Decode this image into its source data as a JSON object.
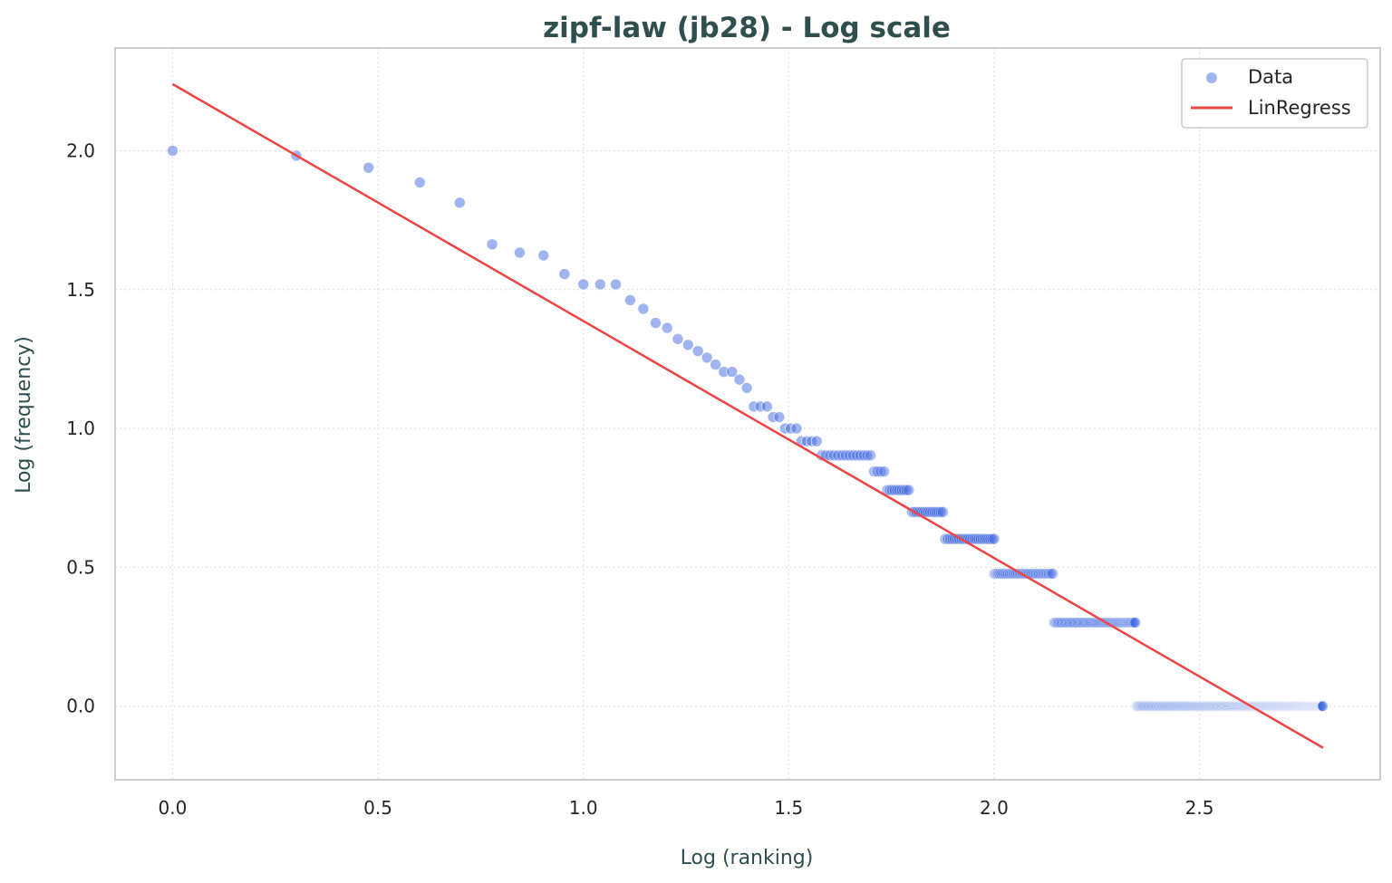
{
  "chart_data": {
    "type": "scatter",
    "title": "zipf-law (jb28) - Log scale",
    "xlabel": "Log (ranking)",
    "ylabel": "Log (frequency)",
    "xlim": [
      -0.14,
      2.94
    ],
    "ylim": [
      -0.265,
      2.37
    ],
    "xticks": [
      0.0,
      0.5,
      1.0,
      1.5,
      2.0,
      2.5
    ],
    "yticks": [
      0.0,
      0.5,
      1.0,
      1.5,
      2.0
    ],
    "xtick_labels": [
      "0.0",
      "0.5",
      "1.0",
      "1.5",
      "2.0",
      "2.5"
    ],
    "ytick_labels": [
      "0.0",
      "0.5",
      "1.0",
      "1.5",
      "2.0"
    ],
    "grid": true,
    "legend_position": "top-right",
    "colors": {
      "data": "#4169e1",
      "regression": "#ef4444",
      "title": "#2f4f4f",
      "axes_edge": "#cccccc",
      "grid": "#dddddd"
    },
    "series": [
      {
        "name": "Data",
        "kind": "scatter",
        "points": [
          [
            0.0,
            2.0
          ],
          [
            0.301,
            1.982
          ],
          [
            0.477,
            1.939
          ],
          [
            0.602,
            1.886
          ],
          [
            0.699,
            1.813
          ],
          [
            0.778,
            1.663
          ],
          [
            0.845,
            1.633
          ],
          [
            0.903,
            1.623
          ],
          [
            0.954,
            1.556
          ],
          [
            1.0,
            1.519
          ],
          [
            1.041,
            1.519
          ],
          [
            1.079,
            1.519
          ],
          [
            1.114,
            1.462
          ],
          [
            1.146,
            1.431
          ],
          [
            1.176,
            1.38
          ],
          [
            1.204,
            1.362
          ],
          [
            1.23,
            1.322
          ],
          [
            1.255,
            1.301
          ],
          [
            1.279,
            1.279
          ],
          [
            1.301,
            1.255
          ],
          [
            1.322,
            1.23
          ],
          [
            1.342,
            1.204
          ],
          [
            1.362,
            1.204
          ],
          [
            1.38,
            1.176
          ],
          [
            1.398,
            1.146
          ],
          [
            1.415,
            1.079
          ],
          [
            1.431,
            1.079
          ],
          [
            1.447,
            1.079
          ],
          [
            1.462,
            1.041
          ],
          [
            1.477,
            1.041
          ],
          [
            1.491,
            1.0
          ],
          [
            1.505,
            1.0
          ],
          [
            1.519,
            1.0
          ],
          [
            1.531,
            0.954
          ],
          [
            1.544,
            0.954
          ],
          [
            1.556,
            0.954
          ],
          [
            1.568,
            0.954
          ]
        ],
        "plateaus": [
          {
            "y": 0.903,
            "x_start": 1.58,
            "x_end": 1.699,
            "count": 14
          },
          {
            "y": 0.845,
            "x_start": 1.708,
            "x_end": 1.732,
            "count": 4
          },
          {
            "y": 0.778,
            "x_start": 1.74,
            "x_end": 1.792,
            "count": 10
          },
          {
            "y": 0.699,
            "x_start": 1.8,
            "x_end": 1.875,
            "count": 15
          },
          {
            "y": 0.602,
            "x_start": 1.881,
            "x_end": 2.0,
            "count": 24
          },
          {
            "y": 0.477,
            "x_start": 2.0,
            "x_end": 2.143,
            "count": 39
          },
          {
            "y": 0.301,
            "x_start": 2.146,
            "x_end": 2.344,
            "count": 82
          },
          {
            "y": 0.0,
            "x_start": 2.346,
            "x_end": 2.801,
            "count": 410
          }
        ]
      },
      {
        "name": "LinRegress",
        "kind": "line",
        "points": [
          [
            0.0,
            2.24
          ],
          [
            2.801,
            -0.15
          ]
        ]
      }
    ]
  }
}
